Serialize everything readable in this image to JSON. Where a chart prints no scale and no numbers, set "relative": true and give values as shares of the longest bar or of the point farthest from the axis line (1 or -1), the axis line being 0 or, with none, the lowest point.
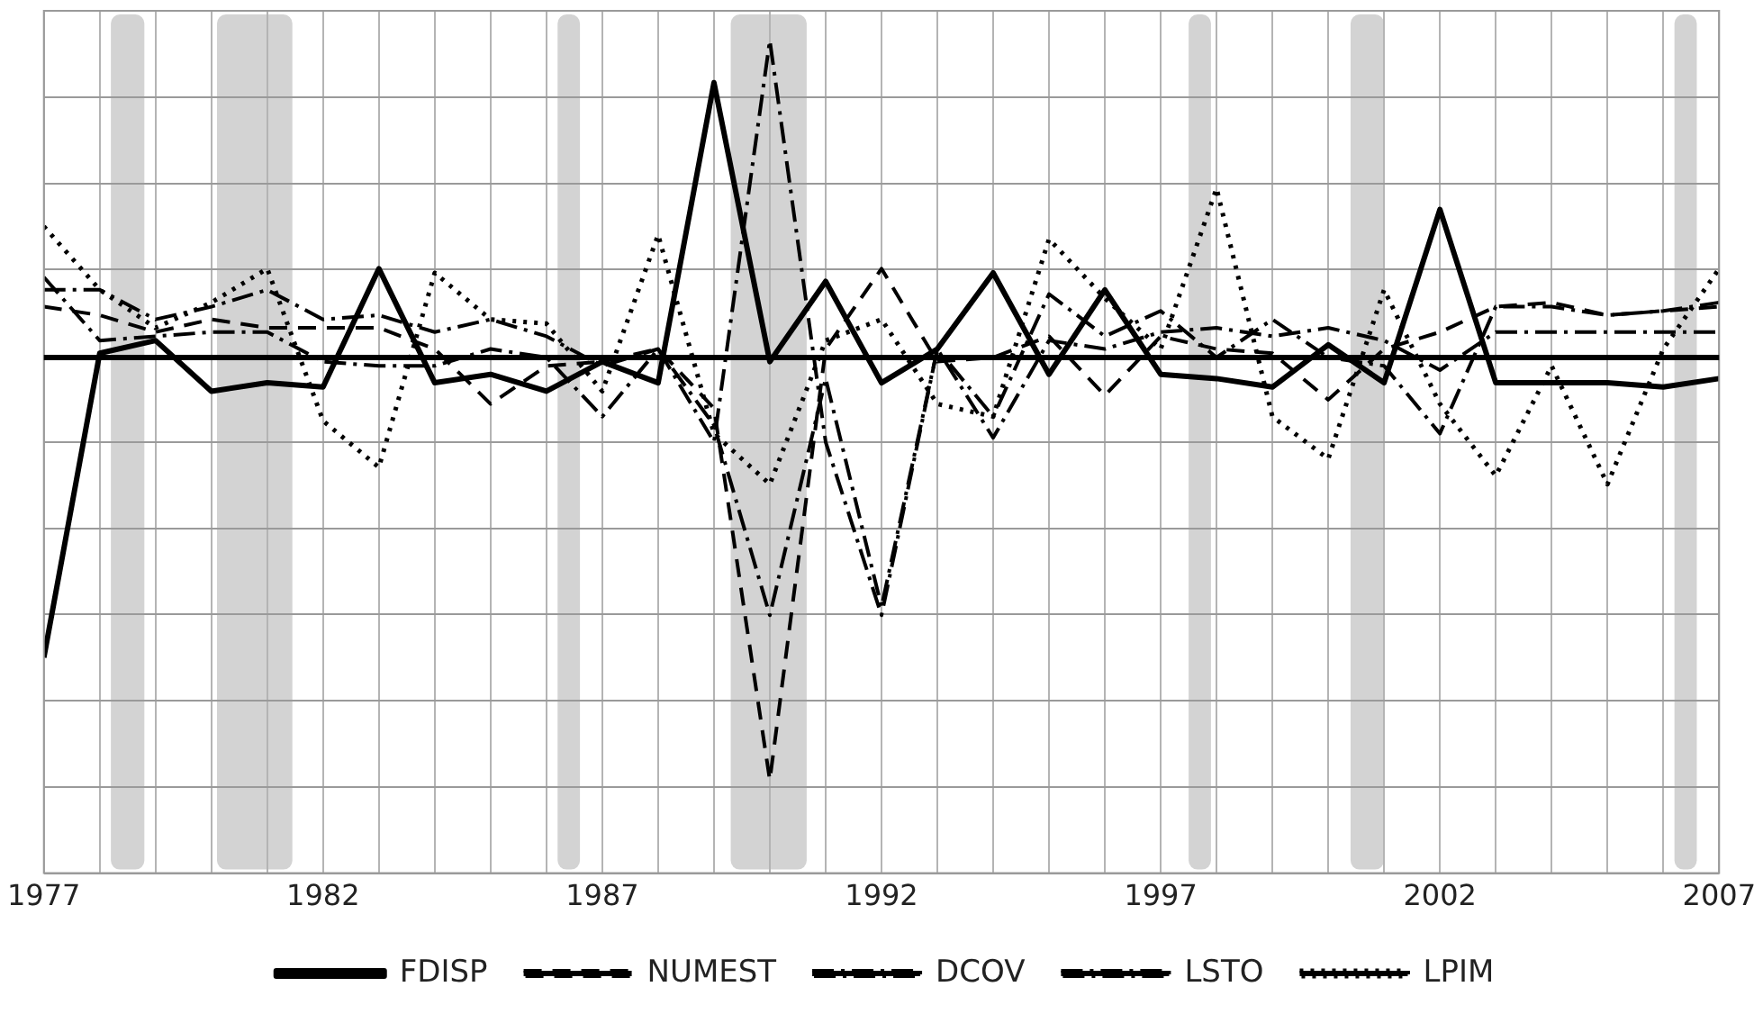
{
  "chart_data": {
    "type": "line",
    "relative": true,
    "grid": true,
    "legend": "bottom",
    "marker": "none",
    "x": [
      1977,
      1978,
      1979,
      1980,
      1981,
      1982,
      1983,
      1984,
      1985,
      1986,
      1987,
      1988,
      1989,
      1990,
      1991,
      1992,
      1993,
      1994,
      1995,
      1996,
      1997,
      1998,
      1999,
      2000,
      2001,
      2002,
      2003,
      2004,
      2005,
      2006,
      2007
    ],
    "xlim": [
      1977,
      2007
    ],
    "xticks": [
      {
        "value": 1977,
        "label": "1977"
      },
      {
        "value": 1978,
        "label": null
      },
      {
        "value": 1979,
        "label": null
      },
      {
        "value": 1980,
        "label": null
      },
      {
        "value": 1981,
        "label": null
      },
      {
        "value": 1982,
        "label": "1982"
      },
      {
        "value": 1983,
        "label": null
      },
      {
        "value": 1984,
        "label": null
      },
      {
        "value": 1985,
        "label": null
      },
      {
        "value": 1986,
        "label": null
      },
      {
        "value": 1987,
        "label": "1987"
      },
      {
        "value": 1988,
        "label": null
      },
      {
        "value": 1989,
        "label": null
      },
      {
        "value": 1990,
        "label": null
      },
      {
        "value": 1991,
        "label": null
      },
      {
        "value": 1992,
        "label": "1992"
      },
      {
        "value": 1993,
        "label": null
      },
      {
        "value": 1994,
        "label": null
      },
      {
        "value": 1995,
        "label": null
      },
      {
        "value": 1996,
        "label": null
      },
      {
        "value": 1997,
        "label": "1997"
      },
      {
        "value": 1998,
        "label": null
      },
      {
        "value": 1999,
        "label": null
      },
      {
        "value": 2000,
        "label": null
      },
      {
        "value": 2001,
        "label": null
      },
      {
        "value": 2002,
        "label": "2002"
      },
      {
        "value": 2003,
        "label": null
      },
      {
        "value": 2004,
        "label": null
      },
      {
        "value": 2005,
        "label": null
      },
      {
        "value": 2006,
        "label": null
      },
      {
        "value": 2007,
        "label": "2007"
      }
    ],
    "bands": [
      {
        "axis": "x",
        "from": 1978.2,
        "to": 1978.8,
        "color": "#d3d3d3"
      },
      {
        "axis": "x",
        "from": 1980.1,
        "to": 1981.45,
        "color": "#d3d3d3"
      },
      {
        "axis": "x",
        "from": 1986.2,
        "to": 1986.6,
        "color": "#d3d3d3"
      },
      {
        "axis": "x",
        "from": 1989.3,
        "to": 1990.66,
        "color": "#d3d3d3"
      },
      {
        "axis": "x",
        "from": 1997.5,
        "to": 1997.9,
        "color": "#d3d3d3"
      },
      {
        "axis": "x",
        "from": 2000.4,
        "to": 2001.0,
        "color": "#d3d3d3"
      },
      {
        "axis": "x",
        "from": 2006.2,
        "to": 2006.6,
        "color": "#d3d3d3"
      }
    ],
    "series": [
      {
        "name": "FDISP",
        "color": "#000000",
        "line_style": "solid",
        "values": [
          -0.71,
          0.01,
          0.04,
          -0.08,
          -0.06,
          -0.07,
          0.21,
          -0.06,
          -0.04,
          -0.08,
          -0.01,
          -0.06,
          0.65,
          -0.01,
          0.18,
          -0.06,
          0.02,
          0.2,
          -0.04,
          0.16,
          -0.04,
          -0.05,
          -0.07,
          0.03,
          -0.06,
          0.35,
          -0.06,
          -0.06,
          -0.06,
          -0.07,
          -0.05
        ]
      },
      {
        "name": "NUMEST",
        "color": "#000000",
        "line_style": "dashed",
        "values": [
          0.12,
          0.1,
          0.06,
          0.09,
          0.07,
          0.07,
          0.07,
          0.02,
          -0.11,
          -0.02,
          -0.01,
          0.02,
          -0.12,
          -1,
          0.02,
          0.21,
          -0.01,
          0,
          0.05,
          -0.09,
          0.05,
          0.02,
          0.01,
          -0.1,
          0.02,
          0.06,
          0.12,
          0.13,
          0.1,
          0.11,
          0.12
        ]
      },
      {
        "name": "DCOV",
        "color": "#000000",
        "line_style": "dashdot",
        "values": [
          0.16,
          0.16,
          0.09,
          0.12,
          0.16,
          0.09,
          0.1,
          0.06,
          0.09,
          0.05,
          -0.02,
          0.02,
          -0.16,
          -0.61,
          -0.05,
          -0.59,
          0.02,
          -0.14,
          0.15,
          0.05,
          0.11,
          0,
          0.09,
          0,
          -0.02,
          -0.18,
          0.12,
          0.12,
          0.1,
          0.11,
          0.13
        ]
      },
      {
        "name": "LSTO",
        "color": "#000000",
        "line_style": "dashdot",
        "values": [
          0.19,
          0.04,
          0.05,
          0.06,
          0.06,
          -0.01,
          -0.02,
          -0.02,
          0.02,
          0,
          -0.14,
          0.02,
          -0.2,
          0.75,
          -0.2,
          -0.61,
          0.02,
          -0.19,
          0.04,
          0.02,
          0.06,
          0.07,
          0.05,
          0.07,
          0.04,
          -0.03,
          0.06,
          0.06,
          0.06,
          0.06,
          0.06
        ]
      },
      {
        "name": "LPIM",
        "color": "#000000",
        "line_style": "dotted",
        "values": [
          0.31,
          0.16,
          0.07,
          0.13,
          0.21,
          -0.15,
          -0.26,
          0.2,
          0.09,
          0.08,
          -0.08,
          0.29,
          -0.18,
          -0.3,
          0.04,
          0.09,
          -0.11,
          -0.14,
          0.28,
          0.14,
          0.02,
          0.4,
          -0.14,
          -0.24,
          0.16,
          -0.11,
          -0.28,
          -0.02,
          -0.3,
          0.02,
          0.21
        ]
      }
    ]
  }
}
